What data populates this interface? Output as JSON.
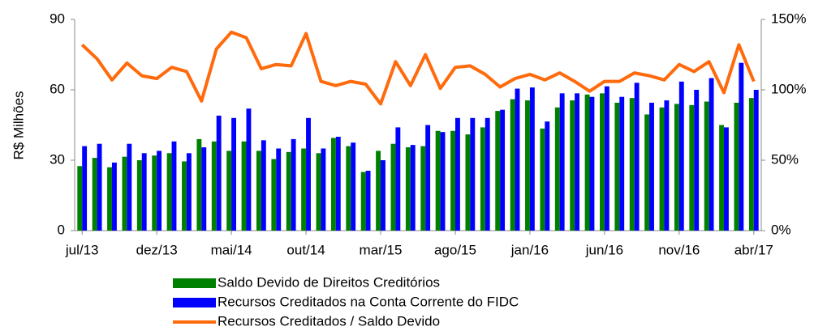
{
  "chart_data": {
    "type": "bar",
    "categories": [
      "jul/13",
      null,
      null,
      null,
      null,
      "dez/13",
      null,
      null,
      null,
      null,
      "mai/14",
      null,
      null,
      null,
      null,
      "out/14",
      null,
      null,
      null,
      null,
      "mar/15",
      null,
      null,
      null,
      null,
      "ago/15",
      null,
      null,
      null,
      null,
      "jan/16",
      null,
      null,
      null,
      null,
      "jun/16",
      null,
      null,
      null,
      null,
      "nov/16",
      null,
      null,
      null,
      null,
      "abr/17"
    ],
    "ylabel": "R$ Milhões",
    "ylim": [
      0,
      90
    ],
    "yticks": [
      0,
      30,
      60,
      90
    ],
    "y2lim": [
      0,
      150
    ],
    "y2ticks": [
      {
        "value": 0,
        "label": "0%"
      },
      {
        "value": 50,
        "label": "50%"
      },
      {
        "value": 100,
        "label": "100%"
      },
      {
        "value": 150,
        "label": "150%"
      }
    ],
    "series": [
      {
        "name": "Saldo Devido de Direitos Creditórios",
        "color": "#008000",
        "type": "bar",
        "values": [
          27.5,
          31,
          27,
          31.5,
          30,
          32,
          33,
          29.5,
          39,
          38,
          34,
          38,
          34,
          30.5,
          33.5,
          35,
          33,
          39.5,
          36,
          25,
          34,
          37,
          35.5,
          36,
          42.5,
          42.5,
          41,
          44,
          51,
          56,
          55.5,
          43.5,
          52.5,
          55.5,
          58,
          58.5,
          54.5,
          56.5,
          49.5,
          52.5,
          54,
          53.5,
          55,
          45,
          54.5,
          56.5
        ]
      },
      {
        "name": "Recursos Creditados na Conta Corrente do FIDC",
        "color": "#0000ff",
        "type": "bar",
        "values": [
          36,
          37,
          29,
          37,
          33,
          34,
          38,
          33,
          35.5,
          49,
          48,
          52,
          38.5,
          35,
          39,
          48,
          35,
          40,
          37.5,
          25.5,
          30,
          44,
          36.5,
          45,
          42,
          48,
          48,
          48,
          51.5,
          60.5,
          61,
          46.5,
          58.5,
          58.5,
          57,
          61.5,
          57,
          63,
          54.5,
          55.5,
          63.5,
          60,
          65,
          44,
          71.5,
          60
        ]
      },
      {
        "name": "Recursos Creditados / Saldo Devido",
        "color": "#ff6a0d",
        "type": "line",
        "axis": "y2",
        "values": [
          132,
          122,
          107,
          119,
          110,
          108,
          116,
          113,
          92,
          129,
          141,
          137,
          115,
          118,
          117,
          140,
          106,
          103,
          106,
          104,
          90,
          120,
          103,
          125,
          101,
          116,
          117,
          111,
          102,
          108,
          111,
          107,
          112,
          106,
          99,
          106,
          106,
          112,
          110,
          107,
          118,
          113,
          120,
          98,
          132,
          106
        ]
      }
    ]
  }
}
